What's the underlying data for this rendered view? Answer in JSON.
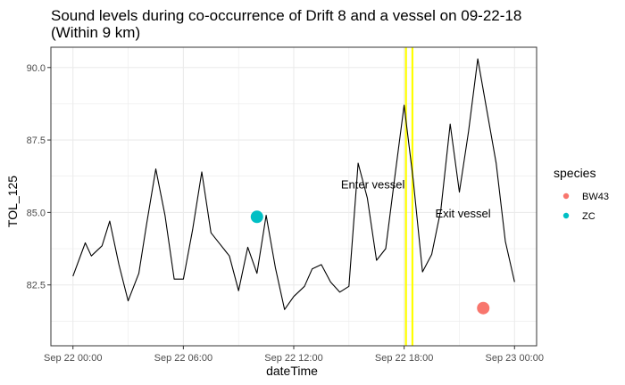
{
  "chart_data": {
    "type": "line",
    "title": [
      "Sound levels during co-occurrence of Drift 8 and a vessel on 09-22-18",
      "(Within 9 km)"
    ],
    "xlabel": "dateTime",
    "ylabel": "TOL_125",
    "x_unit": "hours since Sep 22 00:00",
    "xlim": [
      -1.2,
      25.2
    ],
    "ylim": [
      80.4,
      90.7
    ],
    "x_ticks": [
      {
        "value": 0,
        "label": "Sep 22 00:00"
      },
      {
        "value": 6,
        "label": "Sep 22 06:00"
      },
      {
        "value": 12,
        "label": "Sep 22 12:00"
      },
      {
        "value": 18,
        "label": "Sep 22 18:00"
      },
      {
        "value": 24,
        "label": "Sep 23 00:00"
      }
    ],
    "y_ticks": [
      {
        "value": 82.5,
        "label": "82.5"
      },
      {
        "value": 85.0,
        "label": "85.0"
      },
      {
        "value": 87.5,
        "label": "87.5"
      },
      {
        "value": 90.0,
        "label": "90.0"
      }
    ],
    "grid": true,
    "series": [
      {
        "name": "TOL_125",
        "color": "#000000",
        "x": [
          0,
          0.67,
          1.0,
          1.58,
          2.0,
          2.5,
          3.0,
          3.58,
          4.0,
          4.5,
          5.0,
          5.5,
          6.0,
          6.5,
          7.0,
          7.5,
          8.0,
          8.5,
          9.0,
          9.5,
          10.0,
          10.5,
          11.0,
          11.5,
          12.0,
          12.58,
          13.0,
          13.5,
          14.0,
          14.5,
          15.0,
          15.5,
          16.0,
          16.5,
          17.0,
          17.5,
          18.0,
          18.5,
          19.0,
          19.5,
          20.0,
          20.5,
          21.0,
          21.5,
          22.0,
          22.5,
          23.0,
          23.5,
          24.0
        ],
        "y": [
          82.8,
          83.95,
          83.5,
          83.85,
          84.7,
          83.2,
          81.95,
          82.9,
          84.6,
          86.5,
          84.9,
          82.7,
          82.7,
          84.4,
          86.4,
          84.3,
          83.9,
          83.5,
          82.3,
          83.8,
          82.9,
          84.9,
          83.1,
          81.65,
          82.1,
          82.45,
          83.05,
          83.2,
          82.6,
          82.25,
          82.45,
          86.7,
          85.5,
          83.35,
          83.75,
          86.25,
          88.7,
          86.1,
          82.95,
          83.55,
          85.1,
          88.05,
          85.7,
          87.8,
          90.3,
          88.5,
          86.7,
          84.0,
          82.6
        ]
      }
    ],
    "species_points": [
      {
        "species": "ZC",
        "x": 10.0,
        "y": 84.85,
        "color": "#00BFC4"
      },
      {
        "species": "BW43",
        "x": 22.3,
        "y": 81.7,
        "color": "#F8766D"
      }
    ],
    "vertical_lines": [
      {
        "x": 18.1,
        "color": "#FFFF00"
      },
      {
        "x": 18.45,
        "color": "#FFFF00"
      }
    ],
    "annotations": [
      {
        "text": "Enter vessel",
        "x": 16.3,
        "y": 85.95
      },
      {
        "text": "Exit vessel",
        "x": 21.2,
        "y": 84.95
      }
    ],
    "legend": {
      "title": "species",
      "position": "right",
      "entries": [
        {
          "label": "BW43",
          "color": "#F8766D"
        },
        {
          "label": "ZC",
          "color": "#00BFC4"
        }
      ]
    },
    "colors": {
      "panel_border": "#333333",
      "grid": "#ebebeb",
      "line": "#000000",
      "vline": "#FFFF00"
    }
  }
}
